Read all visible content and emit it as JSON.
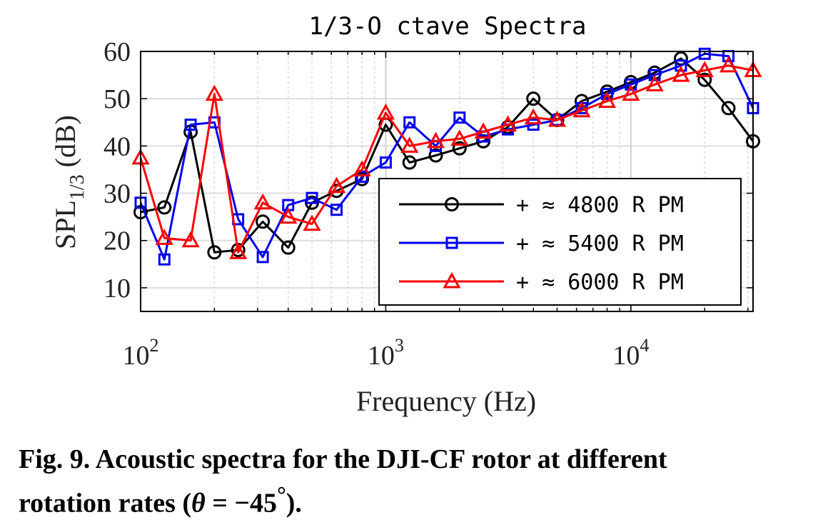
{
  "caption": {
    "line1": "Fig. 9. Acoustic spectra for the DJI-CF rotor at different",
    "line2_prefix": "rotation rates (",
    "theta": "θ",
    "equals": " = −45",
    "degree": "°",
    "line2_suffix": ")."
  },
  "chart_data": {
    "type": "line",
    "title": "1/3-O ctave Spectra",
    "xlabel": "Frequency (Hz)",
    "ylabel": "SPL",
    "ylabel_sub": "1/3",
    "ylabel_unit": " (dB)",
    "xscale": "log",
    "xlim": [
      100,
      31500
    ],
    "ylim": [
      5,
      60
    ],
    "yticks": [
      10,
      20,
      30,
      40,
      50,
      60
    ],
    "xticks": [
      {
        "value": 100,
        "base": "10",
        "exp": "2"
      },
      {
        "value": 1000,
        "base": "10",
        "exp": "3"
      },
      {
        "value": 10000,
        "base": "10",
        "exp": "4"
      }
    ],
    "grid": true,
    "legend_position": "inside-lower-right",
    "x": [
      100,
      125,
      160,
      200,
      250,
      315,
      400,
      500,
      630,
      800,
      1000,
      1250,
      1600,
      2000,
      2500,
      3150,
      4000,
      5000,
      6300,
      8000,
      10000,
      12500,
      16000,
      20000,
      25000,
      31500
    ],
    "series": [
      {
        "name": "+ ≈ 4800 R PM",
        "color": "#000000",
        "marker": "circle",
        "values": [
          26,
          27,
          43,
          17.5,
          18,
          24,
          18.5,
          28,
          30.5,
          33,
          44.5,
          36.5,
          38,
          39.5,
          41,
          44,
          50,
          45.5,
          49.5,
          51.5,
          53.5,
          55.5,
          58.5,
          54,
          48,
          41
        ]
      },
      {
        "name": "+ ≈ 5400 R PM",
        "color": "#0000ee",
        "marker": "square",
        "values": [
          28,
          16,
          44.5,
          45,
          24.5,
          16.5,
          27.5,
          29,
          26.5,
          33.5,
          36.5,
          45,
          40,
          46,
          42,
          43.5,
          44.5,
          45.5,
          48,
          51,
          53,
          55,
          57,
          59.5,
          59,
          48
        ]
      },
      {
        "name": "+ ≈ 6000 R PM",
        "color": "#ff0000",
        "marker": "triangle",
        "values": [
          37.5,
          20.5,
          20,
          51,
          17.5,
          28,
          25,
          23.5,
          31.5,
          35,
          47,
          40,
          41,
          41.5,
          43,
          44.5,
          46,
          45.5,
          47.5,
          49.5,
          51,
          53,
          55,
          56,
          57,
          56
        ]
      }
    ]
  }
}
